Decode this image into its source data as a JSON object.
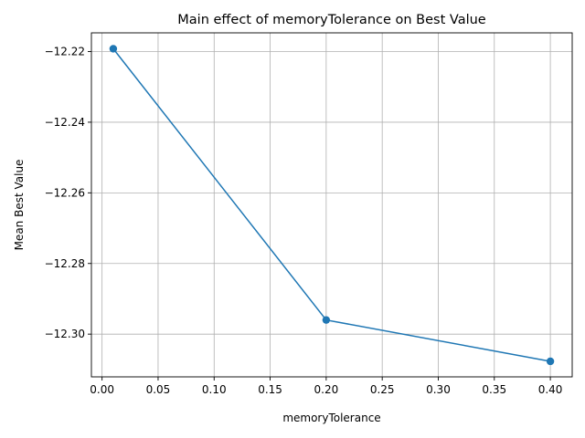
{
  "chart_data": {
    "type": "line",
    "title": "Main effect of memoryTolerance on Best Value",
    "xlabel": "memoryTolerance",
    "ylabel": "Mean Best Value",
    "x": [
      0.01,
      0.2,
      0.4
    ],
    "series": [
      {
        "values": [
          -12.2192,
          -12.296,
          -12.3077
        ],
        "color": "#1f77b4",
        "marker": "circle"
      }
    ],
    "xlim": [
      -0.0095,
      0.4195
    ],
    "ylim": [
      -12.3121,
      -12.2147
    ],
    "x_ticks": [
      {
        "value": 0.0,
        "label": "0.00"
      },
      {
        "value": 0.05,
        "label": "0.05"
      },
      {
        "value": 0.1,
        "label": "0.10"
      },
      {
        "value": 0.15,
        "label": "0.15"
      },
      {
        "value": 0.2,
        "label": "0.20"
      },
      {
        "value": 0.25,
        "label": "0.25"
      },
      {
        "value": 0.3,
        "label": "0.30"
      },
      {
        "value": 0.35,
        "label": "0.35"
      },
      {
        "value": 0.4,
        "label": "0.40"
      }
    ],
    "y_ticks": [
      {
        "value": -12.22,
        "label": "−12.22"
      },
      {
        "value": -12.24,
        "label": "−12.24"
      },
      {
        "value": -12.26,
        "label": "−12.26"
      },
      {
        "value": -12.28,
        "label": "−12.28"
      },
      {
        "value": -12.3,
        "label": "−12.30"
      }
    ],
    "grid": true
  }
}
